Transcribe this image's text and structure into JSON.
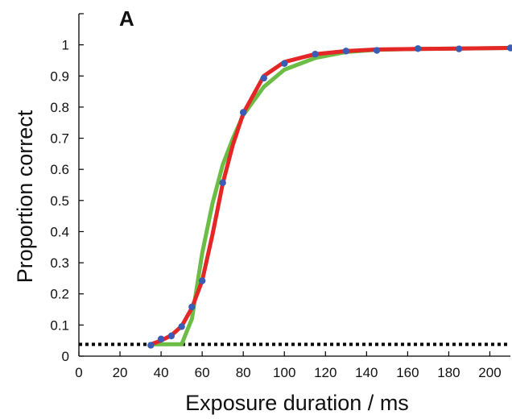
{
  "panel_label": "A",
  "chart_data": {
    "type": "line",
    "title": "",
    "xlabel": "Exposure duration / ms",
    "ylabel": "Proportion correct",
    "xlim": [
      0,
      210
    ],
    "ylim": [
      0,
      1.1
    ],
    "x_ticks": [
      0,
      20,
      40,
      60,
      80,
      100,
      120,
      140,
      160,
      180,
      200
    ],
    "y_ticks": [
      0,
      0.1,
      0.2,
      0.3,
      0.4,
      0.5,
      0.6,
      0.7,
      0.8,
      0.9,
      1
    ],
    "y_tick_labels": [
      "0",
      "0.1",
      "0.2",
      "0.3",
      "0.4",
      "0.5",
      "0.6",
      "0.7",
      "0.8",
      "0.9",
      "1"
    ],
    "grid": false,
    "legend": "none",
    "chance_level": 0.038,
    "series": [
      {
        "kind": "points",
        "color": "#3b5bb5",
        "x": [
          35,
          40,
          45,
          50,
          55,
          60,
          70,
          80,
          90,
          100,
          115,
          130,
          145,
          165,
          185,
          210
        ],
        "y": [
          0.035,
          0.055,
          0.065,
          0.095,
          0.158,
          0.242,
          0.557,
          0.783,
          0.893,
          0.94,
          0.97,
          0.98,
          0.982,
          0.988,
          0.987,
          0.99
        ]
      },
      {
        "kind": "fit",
        "color": "#e52626",
        "x": [
          35,
          40,
          45,
          50,
          55,
          60,
          65,
          70,
          75,
          80,
          90,
          100,
          115,
          130,
          145,
          165,
          185,
          210
        ],
        "y": [
          0.038,
          0.05,
          0.067,
          0.096,
          0.155,
          0.242,
          0.39,
          0.555,
          0.68,
          0.78,
          0.9,
          0.945,
          0.97,
          0.98,
          0.985,
          0.987,
          0.988,
          0.99
        ]
      },
      {
        "kind": "fit",
        "color": "#6cbd45",
        "x": [
          35,
          40,
          45,
          50,
          55,
          60,
          65,
          70,
          75,
          80,
          90,
          100,
          115,
          130,
          145,
          165,
          185,
          210
        ],
        "y": [
          0.038,
          0.038,
          0.038,
          0.038,
          0.12,
          0.33,
          0.49,
          0.615,
          0.7,
          0.775,
          0.865,
          0.92,
          0.958,
          0.977,
          0.984,
          0.987,
          0.988,
          0.99
        ]
      }
    ]
  }
}
